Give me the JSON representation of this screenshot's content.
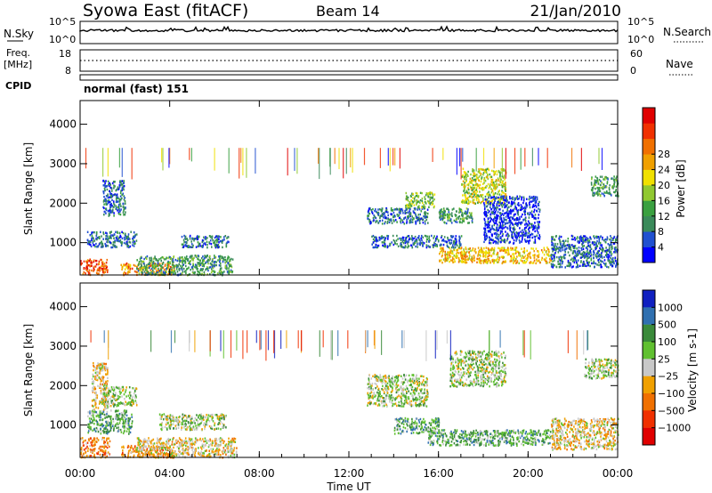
{
  "header": {
    "station": "Syowa East (fitACF)",
    "beam": "Beam 14",
    "date": "21/Jan/2010"
  },
  "panels": {
    "nsky": {
      "label": "N.Sky",
      "right_label": "N.Search",
      "left_ticks": [
        "10^5",
        "10^0"
      ],
      "right_ticks": [
        "10^5",
        "10^0"
      ]
    },
    "freq": {
      "label_line1": "Freq.",
      "label_line2": "[MHz]",
      "right_label": "Nave",
      "left_ticks": [
        "18",
        "8"
      ],
      "right_ticks": [
        "60",
        "0"
      ]
    },
    "cpid": {
      "label": "CPID",
      "value": "normal (fast) 151"
    }
  },
  "colors": {
    "power_scale": [
      "#0000ff",
      "#2050d0",
      "#3a8a5a",
      "#3aa040",
      "#90c830",
      "#f0e000",
      "#f0a000",
      "#f07000",
      "#f03000",
      "#e00000"
    ],
    "velocity_scale": [
      "#1020c0",
      "#3070b0",
      "#3a8a3a",
      "#60c030",
      "#c8c8c8",
      "#f0a000",
      "#f07000",
      "#f03000",
      "#e00000"
    ]
  },
  "chart_data": [
    {
      "type": "heatmap",
      "name": "power",
      "ylabel": "Slant Range [km]",
      "yticks": [
        1000,
        2000,
        3000,
        4000
      ],
      "ylim": [
        180,
        4600
      ],
      "xlabel": "",
      "xticks": [
        "00:00",
        "04:00",
        "08:00",
        "12:00",
        "16:00",
        "20:00",
        "00:00"
      ],
      "xlim_hours": [
        0,
        24
      ],
      "colorbar": {
        "label": "Power [dB]",
        "ticks": [
          "4",
          "8",
          "12",
          "16",
          "20",
          "24",
          "28"
        ]
      },
      "regions": [
        {
          "h0": 0.0,
          "h1": 1.2,
          "r0": 200,
          "r1": 600,
          "level": 8
        },
        {
          "h0": 1.0,
          "h1": 2.0,
          "r0": 1700,
          "r1": 2600,
          "level": 2
        },
        {
          "h0": 0.3,
          "h1": 2.5,
          "r0": 900,
          "r1": 1300,
          "level": 2
        },
        {
          "h0": 1.8,
          "h1": 4.2,
          "r0": 200,
          "r1": 500,
          "level": 7
        },
        {
          "h0": 4.5,
          "h1": 6.6,
          "r0": 900,
          "r1": 1200,
          "level": 2
        },
        {
          "h0": 2.5,
          "h1": 6.8,
          "r0": 200,
          "r1": 700,
          "level": 3
        },
        {
          "h0": 12.8,
          "h1": 15.5,
          "r0": 1500,
          "r1": 1900,
          "level": 2
        },
        {
          "h0": 14.5,
          "h1": 15.8,
          "r0": 1900,
          "r1": 2300,
          "level": 4
        },
        {
          "h0": 16.0,
          "h1": 17.5,
          "r0": 1500,
          "r1": 1900,
          "level": 3
        },
        {
          "h0": 17.0,
          "h1": 19.0,
          "r0": 2000,
          "r1": 2900,
          "level": 5
        },
        {
          "h0": 16.0,
          "h1": 21.0,
          "r0": 500,
          "r1": 900,
          "level": 6
        },
        {
          "h0": 13.0,
          "h1": 17.0,
          "r0": 900,
          "r1": 1200,
          "level": 2
        },
        {
          "h0": 18.0,
          "h1": 20.5,
          "r0": 1000,
          "r1": 2200,
          "level": 1
        },
        {
          "h0": 22.8,
          "h1": 24.0,
          "r0": 2200,
          "r1": 2700,
          "level": 3
        },
        {
          "h0": 21.0,
          "h1": 24.0,
          "r0": 400,
          "r1": 1200,
          "level": 2
        }
      ]
    },
    {
      "type": "heatmap",
      "name": "velocity",
      "ylabel": "Slant Range [km]",
      "yticks": [
        1000,
        2000,
        3000,
        4000
      ],
      "ylim": [
        180,
        4600
      ],
      "xlabel": "Time UT",
      "xticks": [
        "00:00",
        "04:00",
        "08:00",
        "12:00",
        "16:00",
        "20:00",
        "00:00"
      ],
      "xlim_hours": [
        0,
        24
      ],
      "colorbar": {
        "label": "Velocity [m s-1]",
        "ticks": [
          "1000",
          "500",
          "100",
          "25",
          "−25",
          "−100",
          "−500",
          "−1000"
        ]
      },
      "regions": [
        {
          "h0": 0.0,
          "h1": 1.3,
          "r0": 200,
          "r1": 700,
          "level": 6
        },
        {
          "h0": 0.5,
          "h1": 1.2,
          "r0": 1400,
          "r1": 2600,
          "level": 5
        },
        {
          "h0": 1.0,
          "h1": 2.5,
          "r0": 1500,
          "r1": 2000,
          "level": 4
        },
        {
          "h0": 0.3,
          "h1": 2.3,
          "r0": 800,
          "r1": 1400,
          "level": 3
        },
        {
          "h0": 1.8,
          "h1": 4.2,
          "r0": 200,
          "r1": 500,
          "level": 6
        },
        {
          "h0": 3.5,
          "h1": 6.5,
          "r0": 900,
          "r1": 1300,
          "level": 4
        },
        {
          "h0": 2.5,
          "h1": 7.0,
          "r0": 200,
          "r1": 700,
          "level": 5
        },
        {
          "h0": 12.8,
          "h1": 15.5,
          "r0": 1500,
          "r1": 2300,
          "level": 4
        },
        {
          "h0": 16.5,
          "h1": 19.0,
          "r0": 2000,
          "r1": 2900,
          "level": 4
        },
        {
          "h0": 15.5,
          "h1": 21.0,
          "r0": 500,
          "r1": 900,
          "level": 3
        },
        {
          "h0": 14.0,
          "h1": 16.0,
          "r0": 800,
          "r1": 1200,
          "level": 3
        },
        {
          "h0": 22.5,
          "h1": 24.0,
          "r0": 2200,
          "r1": 2700,
          "level": 4
        },
        {
          "h0": 21.0,
          "h1": 24.0,
          "r0": 400,
          "r1": 1200,
          "level": 5
        }
      ]
    }
  ]
}
